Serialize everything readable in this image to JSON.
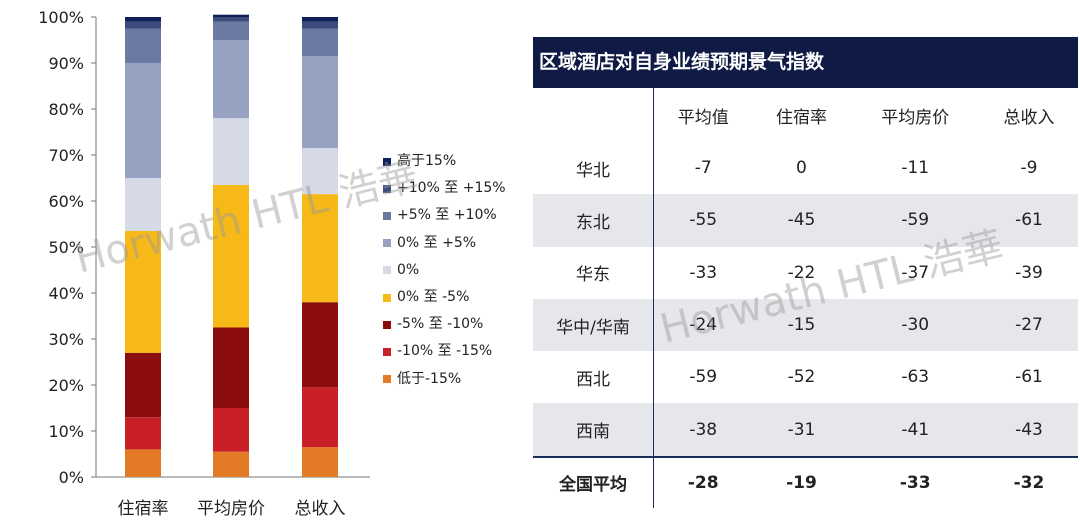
{
  "watermark": "Horwath HTL 浩華",
  "chart_data": {
    "type": "bar",
    "stacked": true,
    "categories": [
      "住宿率",
      "平均房价",
      "总收入"
    ],
    "ylim": [
      0,
      100
    ],
    "yticks": [
      "0%",
      "10%",
      "20%",
      "30%",
      "40%",
      "50%",
      "60%",
      "70%",
      "80%",
      "90%",
      "100%"
    ],
    "legend_position": "right",
    "series": [
      {
        "name": "低于-15%",
        "color": "#e27a26",
        "values": [
          6,
          5.5,
          6.5
        ]
      },
      {
        "name": "-10% 至 -15%",
        "color": "#c91f26",
        "values": [
          7,
          9.5,
          13
        ]
      },
      {
        "name": "-5% 至 -10%",
        "color": "#8b0d0d",
        "values": [
          14,
          17.5,
          18.5
        ]
      },
      {
        "name": "0% 至 -5%",
        "color": "#f7b918",
        "values": [
          26.5,
          31,
          23.5
        ]
      },
      {
        "name": "0%",
        "color": "#d6d9e6",
        "values": [
          11.5,
          14.5,
          10
        ]
      },
      {
        "name": "0% 至 +5%",
        "color": "#97a1c2",
        "values": [
          25,
          17,
          20
        ]
      },
      {
        "name": "+5% 至 +10%",
        "color": "#6c7aa3",
        "values": [
          7.5,
          4,
          6
        ]
      },
      {
        "name": "+10% 至 +15%",
        "color": "#3b4b7b",
        "values": [
          1.5,
          1,
          1.5
        ]
      },
      {
        "name": "高于15%",
        "color": "#0f1f5a",
        "values": [
          1,
          0.5,
          1
        ]
      }
    ]
  },
  "table": {
    "title": "区域酒店对自身业绩预期景气指数",
    "headers": [
      "",
      "平均值",
      "住宿率",
      "平均房价",
      "总收入"
    ],
    "rows": [
      [
        "华北",
        "-7",
        "0",
        "-11",
        "-9"
      ],
      [
        "东北",
        "-55",
        "-45",
        "-59",
        "-61"
      ],
      [
        "华东",
        "-33",
        "-22",
        "-37",
        "-39"
      ],
      [
        "华中/华南",
        "-24",
        "-15",
        "-30",
        "-27"
      ],
      [
        "西北",
        "-59",
        "-52",
        "-63",
        "-61"
      ],
      [
        "西南",
        "-38",
        "-31",
        "-41",
        "-43"
      ]
    ],
    "total": [
      "全国平均",
      "-28",
      "-19",
      "-33",
      "-32"
    ]
  }
}
